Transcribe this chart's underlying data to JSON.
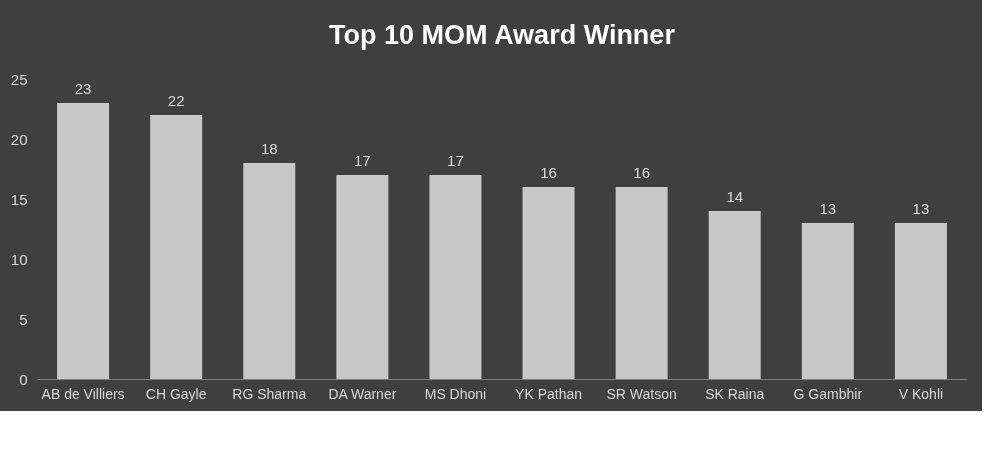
{
  "chart_data": {
    "type": "bar",
    "title": "Top 10 MOM Award Winner",
    "categories": [
      "AB de Villiers",
      "CH Gayle",
      "RG Sharma",
      "DA Warner",
      "MS Dhoni",
      "YK Pathan",
      "SR Watson",
      "SK Raina",
      "G Gambhir",
      "V Kohli"
    ],
    "values": [
      23,
      22,
      18,
      17,
      17,
      16,
      16,
      14,
      13,
      13
    ],
    "color": "#c8c8c8",
    "ylim": [
      0,
      25
    ],
    "yticks": [
      0,
      5,
      10,
      15,
      20,
      25
    ],
    "grid": false,
    "data_labels": true
  }
}
